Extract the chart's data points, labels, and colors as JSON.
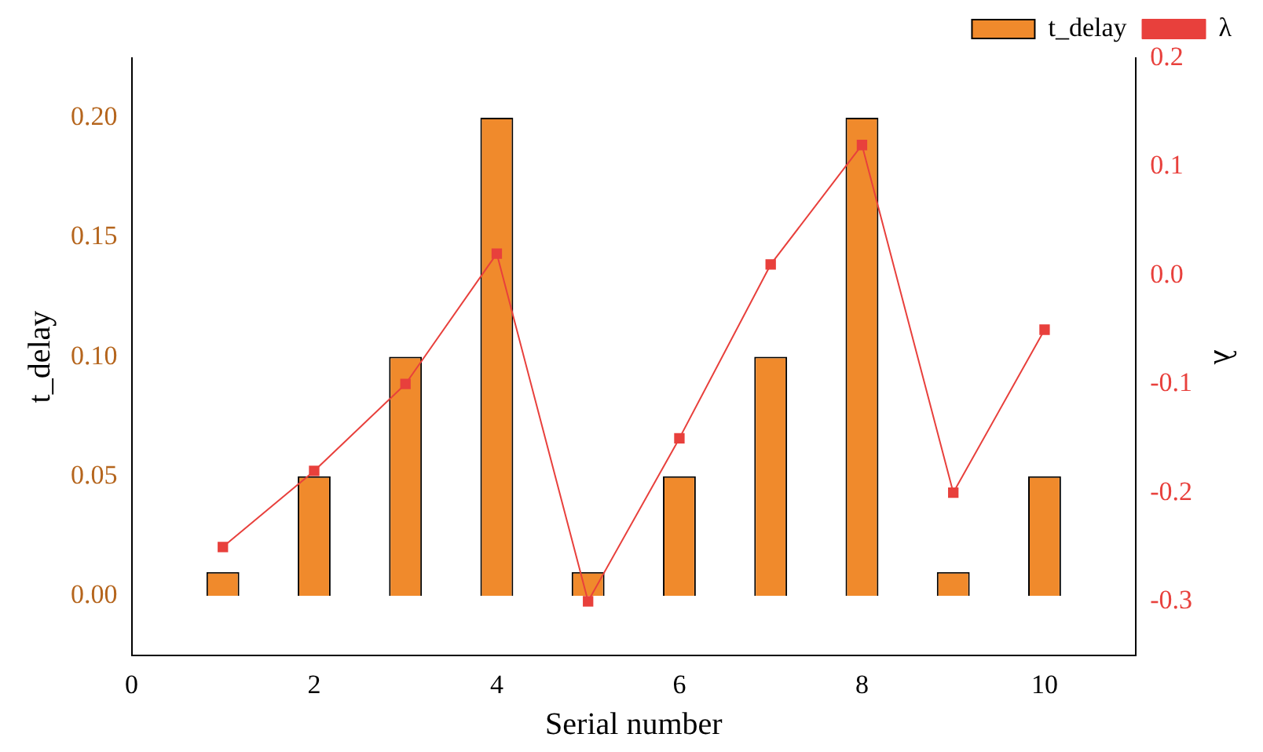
{
  "chart_data": {
    "type": "bar",
    "xlabel": "Serial number",
    "ylabel": "t_delay",
    "y2label": "λ",
    "x": [
      1,
      2,
      3,
      4,
      5,
      6,
      7,
      8,
      9,
      10
    ],
    "series": [
      {
        "name": "t_delay",
        "color": "#f08a2c",
        "values": [
          0.01,
          0.05,
          0.1,
          0.2,
          0.01,
          0.05,
          0.1,
          0.2,
          0.01,
          0.05
        ]
      },
      {
        "name": "λ",
        "type": "line",
        "axis": "y2",
        "color": "#e8403c",
        "marker": "square",
        "values": [
          -0.25,
          -0.18,
          -0.1,
          0.02,
          -0.3,
          -0.15,
          0.01,
          0.12,
          -0.2,
          -0.05
        ]
      }
    ],
    "xlim": [
      0,
      11
    ],
    "xticks": [
      0,
      2,
      4,
      6,
      8,
      10
    ],
    "ylim": [
      -0.025,
      0.225
    ],
    "yticks": [
      {
        "value": 0,
        "label": "0.00"
      },
      {
        "value": 0.05,
        "label": "0.05"
      },
      {
        "value": 0.1,
        "label": "0.10"
      },
      {
        "value": 0.15,
        "label": "0.15"
      },
      {
        "value": 0.2,
        "label": "0.20"
      }
    ],
    "y2lim": [
      -0.35,
      0.2
    ],
    "y2ticks": [
      -0.3,
      -0.2,
      -0.1,
      {
        "value": 0,
        "label": "0.0"
      },
      0.1,
      0.2
    ],
    "legend": "top right",
    "grid": false
  }
}
